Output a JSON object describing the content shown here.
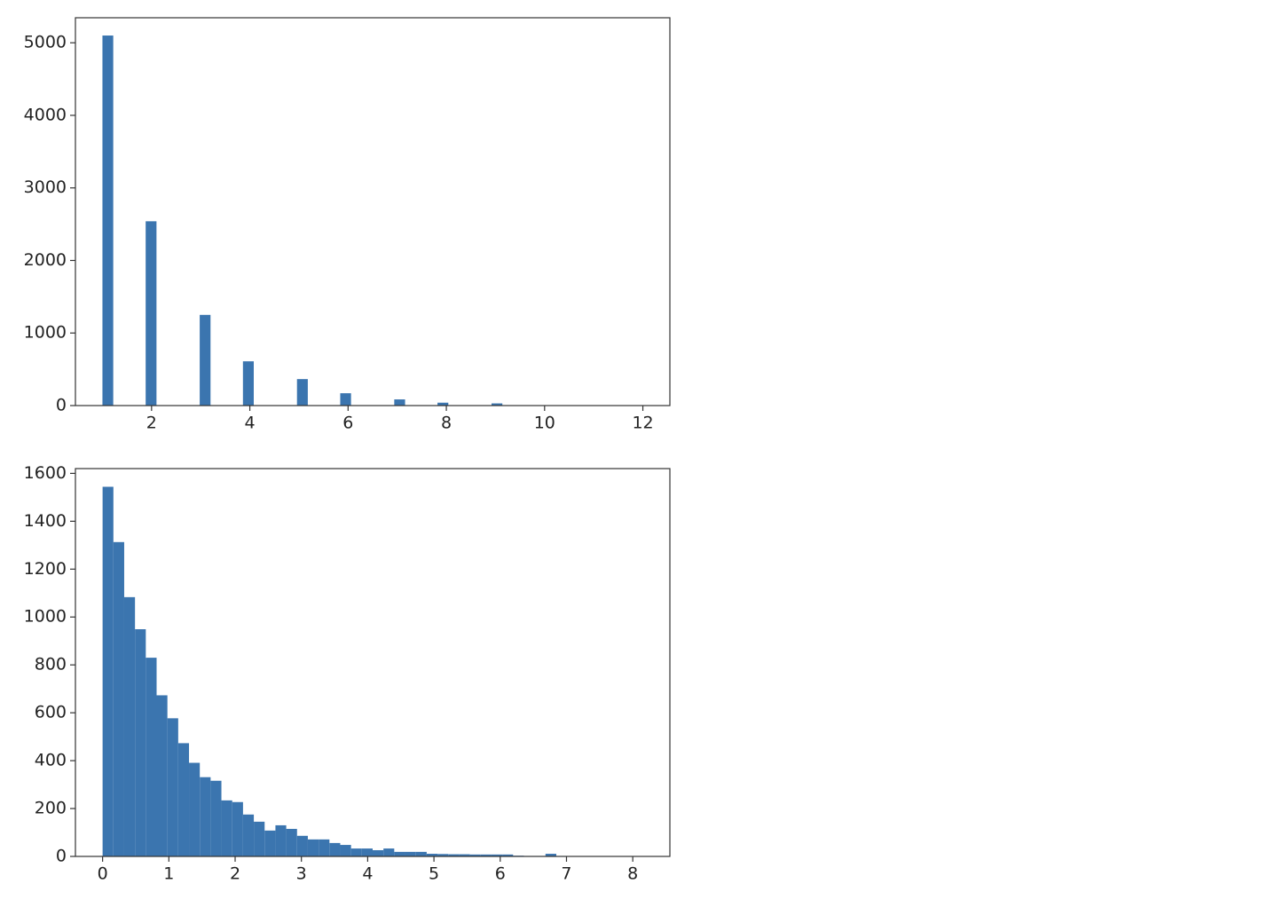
{
  "chart_data": [
    {
      "type": "histogram",
      "color": "#3b75af",
      "bins": [
        1,
        1.22,
        1.44,
        1.66,
        1.88,
        2.1,
        2.32,
        2.54,
        2.76,
        2.98,
        3.2,
        3.42,
        3.64,
        3.86,
        4.08,
        4.3,
        4.52,
        4.74,
        4.96,
        5.18,
        5.4,
        5.62,
        5.84,
        6.06,
        6.28,
        6.5,
        6.72,
        6.94,
        7.16,
        7.38,
        7.6,
        7.82,
        8.04,
        8.26,
        8.48,
        8.7,
        8.92,
        9.14,
        9.36,
        9.58,
        9.8,
        10.02,
        10.24,
        10.46,
        10.68,
        10.9,
        11.12,
        11.34,
        11.56,
        11.78,
        12
      ],
      "values": [
        5100,
        0,
        0,
        0,
        2540,
        0,
        0,
        0,
        0,
        1250,
        0,
        0,
        0,
        610,
        0,
        0,
        0,
        0,
        365,
        0,
        0,
        0,
        170,
        0,
        0,
        0,
        0,
        85,
        0,
        0,
        0,
        40,
        0,
        0,
        0,
        0,
        30,
        0,
        0,
        0,
        6,
        0,
        0,
        0,
        0,
        3,
        0,
        0,
        0,
        1
      ],
      "xlim": [
        0.45,
        12.55
      ],
      "xticks": [
        2,
        4,
        6,
        8,
        10,
        12
      ],
      "ylim": [
        0,
        5345
      ],
      "yticks": [
        0,
        1000,
        2000,
        3000,
        4000,
        5000
      ]
    },
    {
      "type": "histogram",
      "color": "#3b75af",
      "bins": [
        0,
        0.163,
        0.326,
        0.489,
        0.652,
        0.815,
        0.978,
        1.141,
        1.304,
        1.467,
        1.63,
        1.793,
        1.956,
        2.119,
        2.282,
        2.445,
        2.608,
        2.771,
        2.934,
        3.097,
        3.26,
        3.423,
        3.586,
        3.749,
        3.912,
        4.075,
        4.238,
        4.401,
        4.564,
        4.727,
        4.89,
        5.053,
        5.216,
        5.379,
        5.542,
        5.705,
        5.868,
        6.031,
        6.194,
        6.357,
        6.52,
        6.683,
        6.846,
        7.009,
        7.172,
        7.335,
        7.498,
        7.661,
        7.824,
        7.987,
        8.15
      ],
      "values": [
        1544,
        1313,
        1083,
        949,
        830,
        673,
        577,
        473,
        391,
        331,
        316,
        234,
        227,
        175,
        145,
        108,
        130,
        115,
        86,
        71,
        71,
        56,
        48,
        33,
        33,
        26,
        33,
        19,
        19,
        19,
        11,
        10,
        9,
        9,
        8,
        8,
        8,
        8,
        3,
        2,
        2,
        11,
        2,
        1,
        1,
        1,
        0,
        0,
        0,
        1
      ],
      "xlim": [
        -0.41,
        8.56
      ],
      "xticks": [
        0,
        1,
        2,
        3,
        4,
        5,
        6,
        7,
        8
      ],
      "ylim": [
        0,
        1620
      ],
      "yticks": [
        0,
        200,
        400,
        600,
        800,
        1000,
        1200,
        1400,
        1600
      ]
    }
  ]
}
